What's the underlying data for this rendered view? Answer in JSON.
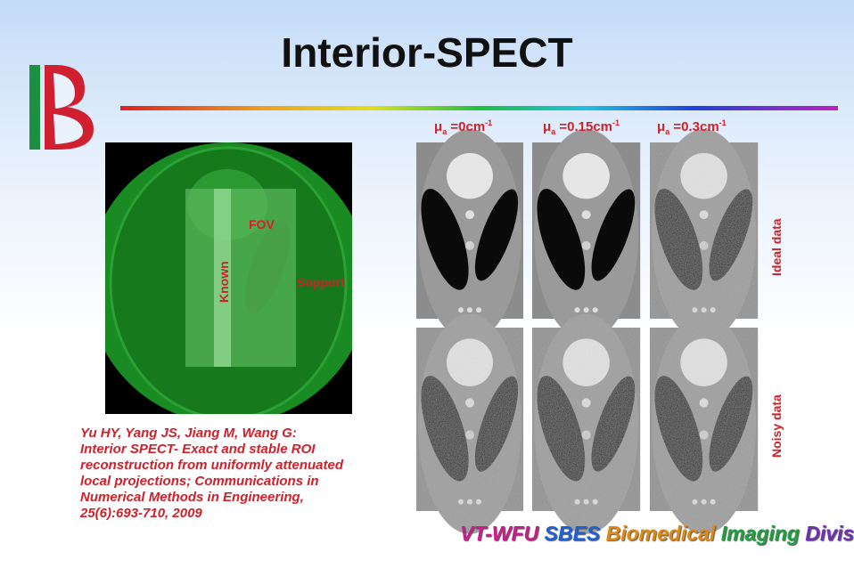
{
  "header": {
    "title": "Interior-SPECT"
  },
  "diagram": {
    "fov": "FOV",
    "known": "Known",
    "support": "Support"
  },
  "columns": [
    {
      "symbol": "μ",
      "sub": "a",
      "text": " =0cm",
      "sup": "-1"
    },
    {
      "symbol": "μ",
      "sub": "a",
      "text": " =0.15cm",
      "sup": "-1"
    },
    {
      "symbol": "μ",
      "sub": "a",
      "text": " =0.3cm",
      "sup": "-1"
    }
  ],
  "rows": [
    "Ideal data",
    "Noisy data"
  ],
  "citation": [
    "Yu HY, Yang JS, Jiang M, Wang G:",
    "Interior SPECT- Exact and stable ROI",
    "reconstruction from uniformly attenuated",
    "local projections; Communications in",
    "Numerical Methods in Engineering,",
    "25(6):693-710, 2009"
  ],
  "footer": [
    "VT-WFU",
    "SBES",
    "Biomedical",
    "Imaging",
    "Division"
  ]
}
